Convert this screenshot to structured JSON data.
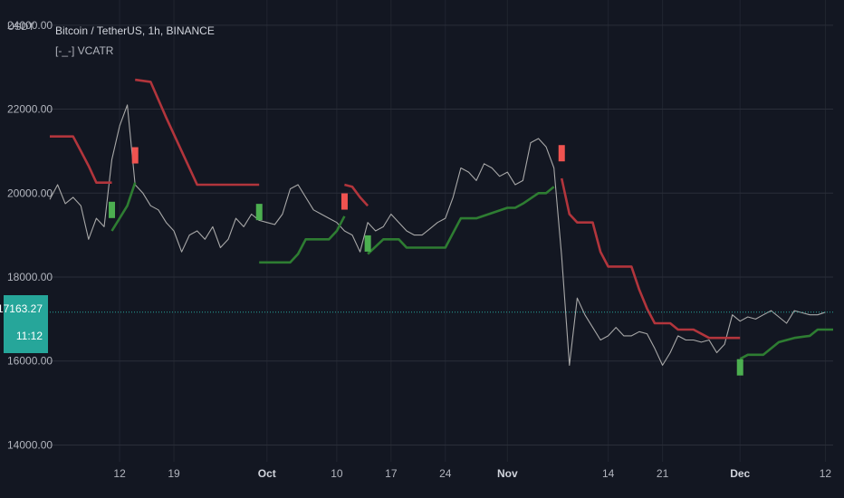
{
  "header": {
    "currency": "USDT",
    "title": "Bitcoin / TetherUS, 1h, BINANCE",
    "indicator": "[-_-] VCATR"
  },
  "price_tag": {
    "value": "17163.27",
    "countdown": "11:12"
  },
  "colors": {
    "background": "#131722",
    "grid": "#2a2e39",
    "text": "#b2b5be",
    "stop_bear": "#b2353c",
    "stop_bull": "#2e7d32",
    "price_line": "#26a69a",
    "candle": "#a8a8a8",
    "signal_buy": "#4caf50",
    "signal_sell": "#f05350"
  },
  "chart_data": {
    "type": "line",
    "title": "Bitcoin / TetherUS, 1h, BINANCE",
    "ylim": [
      13600,
      24600
    ],
    "y_ticks": [
      {
        "value": 24000,
        "label": "24000.00"
      },
      {
        "value": 22000,
        "label": "22000.00"
      },
      {
        "value": 20000,
        "label": "20000.00"
      },
      {
        "value": 18000,
        "label": "18000.00"
      },
      {
        "value": 16000,
        "label": "16000.00"
      },
      {
        "value": 14000,
        "label": "14000.00"
      }
    ],
    "x_domain": [
      "2022-09-03",
      "2022-12-13"
    ],
    "x_ticks": [
      {
        "date": "2022-09-12",
        "label": "12",
        "bold": false
      },
      {
        "date": "2022-09-19",
        "label": "19",
        "bold": false
      },
      {
        "date": "2022-10-01",
        "label": "Oct",
        "bold": true
      },
      {
        "date": "2022-10-10",
        "label": "10",
        "bold": false
      },
      {
        "date": "2022-10-17",
        "label": "17",
        "bold": false
      },
      {
        "date": "2022-10-24",
        "label": "24",
        "bold": false
      },
      {
        "date": "2022-11-01",
        "label": "Nov",
        "bold": true
      },
      {
        "date": "2022-11-14",
        "label": "14",
        "bold": false
      },
      {
        "date": "2022-11-21",
        "label": "21",
        "bold": false
      },
      {
        "date": "2022-12-01",
        "label": "Dec",
        "bold": true
      },
      {
        "date": "2022-12-12",
        "label": "12",
        "bold": false
      }
    ],
    "last_price": 17163.27,
    "series": [
      {
        "role": "price",
        "points": [
          [
            "2022-09-03",
            19850
          ],
          [
            "2022-09-04",
            20200
          ],
          [
            "2022-09-05",
            19750
          ],
          [
            "2022-09-06",
            19900
          ],
          [
            "2022-09-07",
            19700
          ],
          [
            "2022-09-08",
            18900
          ],
          [
            "2022-09-09",
            19400
          ],
          [
            "2022-09-10",
            19200
          ],
          [
            "2022-09-11",
            20800
          ],
          [
            "2022-09-12",
            21600
          ],
          [
            "2022-09-13",
            22100
          ],
          [
            "2022-09-14",
            20200
          ],
          [
            "2022-09-15",
            20000
          ],
          [
            "2022-09-16",
            19700
          ],
          [
            "2022-09-17",
            19600
          ],
          [
            "2022-09-18",
            19300
          ],
          [
            "2022-09-19",
            19100
          ],
          [
            "2022-09-20",
            18600
          ],
          [
            "2022-09-21",
            19000
          ],
          [
            "2022-09-22",
            19100
          ],
          [
            "2022-09-23",
            18900
          ],
          [
            "2022-09-24",
            19200
          ],
          [
            "2022-09-25",
            18700
          ],
          [
            "2022-09-26",
            18900
          ],
          [
            "2022-09-27",
            19400
          ],
          [
            "2022-09-28",
            19200
          ],
          [
            "2022-09-29",
            19500
          ],
          [
            "2022-09-30",
            19350
          ],
          [
            "2022-10-01",
            19300
          ],
          [
            "2022-10-02",
            19250
          ],
          [
            "2022-10-03",
            19500
          ],
          [
            "2022-10-04",
            20100
          ],
          [
            "2022-10-05",
            20200
          ],
          [
            "2022-10-06",
            19900
          ],
          [
            "2022-10-07",
            19600
          ],
          [
            "2022-10-08",
            19500
          ],
          [
            "2022-10-09",
            19400
          ],
          [
            "2022-10-10",
            19300
          ],
          [
            "2022-10-11",
            19100
          ],
          [
            "2022-10-12",
            19000
          ],
          [
            "2022-10-13",
            18600
          ],
          [
            "2022-10-14",
            19300
          ],
          [
            "2022-10-15",
            19100
          ],
          [
            "2022-10-16",
            19200
          ],
          [
            "2022-10-17",
            19500
          ],
          [
            "2022-10-18",
            19300
          ],
          [
            "2022-10-19",
            19100
          ],
          [
            "2022-10-20",
            19000
          ],
          [
            "2022-10-21",
            19000
          ],
          [
            "2022-10-22",
            19150
          ],
          [
            "2022-10-23",
            19300
          ],
          [
            "2022-10-24",
            19400
          ],
          [
            "2022-10-25",
            19900
          ],
          [
            "2022-10-26",
            20600
          ],
          [
            "2022-10-27",
            20500
          ],
          [
            "2022-10-28",
            20300
          ],
          [
            "2022-10-29",
            20700
          ],
          [
            "2022-10-30",
            20600
          ],
          [
            "2022-10-31",
            20400
          ],
          [
            "2022-11-01",
            20500
          ],
          [
            "2022-11-02",
            20200
          ],
          [
            "2022-11-03",
            20300
          ],
          [
            "2022-11-04",
            21200
          ],
          [
            "2022-11-05",
            21300
          ],
          [
            "2022-11-06",
            21100
          ],
          [
            "2022-11-07",
            20600
          ],
          [
            "2022-11-08",
            18500
          ],
          [
            "2022-11-09",
            15900
          ],
          [
            "2022-11-10",
            17500
          ],
          [
            "2022-11-11",
            17100
          ],
          [
            "2022-11-12",
            16800
          ],
          [
            "2022-11-13",
            16500
          ],
          [
            "2022-11-14",
            16600
          ],
          [
            "2022-11-15",
            16800
          ],
          [
            "2022-11-16",
            16600
          ],
          [
            "2022-11-17",
            16600
          ],
          [
            "2022-11-18",
            16700
          ],
          [
            "2022-11-19",
            16650
          ],
          [
            "2022-11-20",
            16300
          ],
          [
            "2022-11-21",
            15900
          ],
          [
            "2022-11-22",
            16200
          ],
          [
            "2022-11-23",
            16600
          ],
          [
            "2022-11-24",
            16500
          ],
          [
            "2022-11-25",
            16500
          ],
          [
            "2022-11-26",
            16450
          ],
          [
            "2022-11-27",
            16500
          ],
          [
            "2022-11-28",
            16200
          ],
          [
            "2022-11-29",
            16400
          ],
          [
            "2022-11-30",
            17100
          ],
          [
            "2022-12-01",
            16950
          ],
          [
            "2022-12-02",
            17050
          ],
          [
            "2022-12-03",
            17000
          ],
          [
            "2022-12-04",
            17100
          ],
          [
            "2022-12-05",
            17200
          ],
          [
            "2022-12-06",
            17050
          ],
          [
            "2022-12-07",
            16900
          ],
          [
            "2022-12-08",
            17200
          ],
          [
            "2022-12-09",
            17150
          ],
          [
            "2022-12-10",
            17100
          ],
          [
            "2022-12-11",
            17100
          ],
          [
            "2022-12-12",
            17163.27
          ]
        ]
      },
      {
        "role": "stop-bear-1",
        "points": [
          [
            "2022-09-03",
            21350
          ],
          [
            "2022-09-06",
            21350
          ],
          [
            "2022-09-07",
            21000
          ],
          [
            "2022-09-08",
            20650
          ],
          [
            "2022-09-09",
            20250
          ],
          [
            "2022-09-11",
            20250
          ]
        ]
      },
      {
        "role": "stop-bull-1",
        "points": [
          [
            "2022-09-11",
            19100
          ],
          [
            "2022-09-12",
            19400
          ],
          [
            "2022-09-13",
            19700
          ],
          [
            "2022-09-14",
            20250
          ]
        ]
      },
      {
        "role": "stop-bear-2",
        "points": [
          [
            "2022-09-14",
            22700
          ],
          [
            "2022-09-16",
            22650
          ],
          [
            "2022-09-18",
            21800
          ],
          [
            "2022-09-20",
            21000
          ],
          [
            "2022-09-22",
            20200
          ],
          [
            "2022-09-30",
            20200
          ]
        ]
      },
      {
        "role": "stop-bull-2",
        "points": [
          [
            "2022-09-30",
            18350
          ],
          [
            "2022-10-04",
            18350
          ],
          [
            "2022-10-05",
            18550
          ],
          [
            "2022-10-06",
            18900
          ],
          [
            "2022-10-09",
            18900
          ],
          [
            "2022-10-10",
            19100
          ],
          [
            "2022-10-11",
            19450
          ]
        ]
      },
      {
        "role": "stop-bear-3",
        "points": [
          [
            "2022-10-11",
            20200
          ],
          [
            "2022-10-12",
            20150
          ],
          [
            "2022-10-13",
            19900
          ],
          [
            "2022-10-14",
            19700
          ]
        ]
      },
      {
        "role": "stop-bull-3",
        "points": [
          [
            "2022-10-14",
            18550
          ],
          [
            "2022-10-16",
            18900
          ],
          [
            "2022-10-18",
            18900
          ],
          [
            "2022-10-19",
            18700
          ],
          [
            "2022-10-24",
            18700
          ],
          [
            "2022-10-25",
            19050
          ],
          [
            "2022-10-26",
            19400
          ],
          [
            "2022-10-28",
            19400
          ],
          [
            "2022-11-01",
            19650
          ],
          [
            "2022-11-02",
            19650
          ],
          [
            "2022-11-03",
            19750
          ],
          [
            "2022-11-05",
            20000
          ],
          [
            "2022-11-06",
            20000
          ],
          [
            "2022-11-07",
            20150
          ]
        ]
      },
      {
        "role": "stop-bear-4",
        "points": [
          [
            "2022-11-08",
            20350
          ],
          [
            "2022-11-09",
            19500
          ],
          [
            "2022-11-10",
            19300
          ],
          [
            "2022-11-12",
            19300
          ],
          [
            "2022-11-13",
            18600
          ],
          [
            "2022-11-14",
            18250
          ],
          [
            "2022-11-17",
            18250
          ],
          [
            "2022-11-18",
            17700
          ],
          [
            "2022-11-19",
            17250
          ],
          [
            "2022-11-20",
            16900
          ],
          [
            "2022-11-22",
            16900
          ],
          [
            "2022-11-23",
            16750
          ],
          [
            "2022-11-25",
            16750
          ],
          [
            "2022-11-27",
            16550
          ],
          [
            "2022-12-01",
            16550
          ]
        ]
      },
      {
        "role": "stop-bull-4",
        "points": [
          [
            "2022-12-01",
            16050
          ],
          [
            "2022-12-02",
            16150
          ],
          [
            "2022-12-04",
            16150
          ],
          [
            "2022-12-06",
            16450
          ],
          [
            "2022-12-08",
            16550
          ],
          [
            "2022-12-10",
            16600
          ],
          [
            "2022-12-11",
            16750
          ],
          [
            "2022-12-13",
            16750
          ]
        ]
      }
    ],
    "signals": [
      {
        "type": "buy",
        "date": "2022-09-11",
        "value": 19600
      },
      {
        "type": "sell",
        "date": "2022-09-14",
        "value": 20900
      },
      {
        "type": "buy",
        "date": "2022-09-30",
        "value": 19550
      },
      {
        "type": "sell",
        "date": "2022-10-11",
        "value": 19800
      },
      {
        "type": "buy",
        "date": "2022-10-14",
        "value": 18800
      },
      {
        "type": "sell",
        "date": "2022-11-08",
        "value": 20950
      },
      {
        "type": "buy",
        "date": "2022-12-01",
        "value": 15850
      }
    ]
  }
}
